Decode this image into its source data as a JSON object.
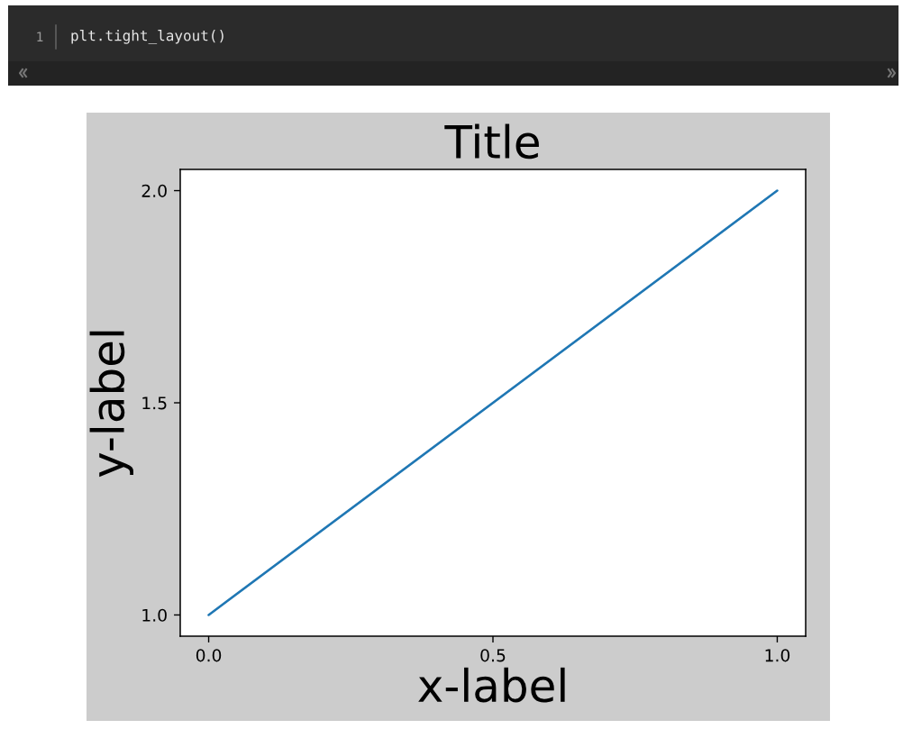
{
  "chart_data": {
    "type": "line",
    "title": "Title",
    "xlabel": "x-label",
    "ylabel": "y-label",
    "x": [
      0,
      1
    ],
    "series": [
      {
        "color": "#1f77b4",
        "values": [
          1,
          2
        ]
      }
    ],
    "xlim": [
      -0.05,
      1.05
    ],
    "ylim": [
      0.95,
      2.05
    ],
    "xticks": [
      {
        "value": 0,
        "label": "0.0"
      },
      0.5,
      {
        "value": 1,
        "label": "1.0"
      }
    ],
    "yticks": [
      {
        "value": 1,
        "label": "1.0"
      },
      1.5,
      {
        "value": 2,
        "label": "2.0"
      }
    ],
    "line_style": "solid",
    "annotations": [
      "1",
      "plt.tight_layout()"
    ]
  }
}
